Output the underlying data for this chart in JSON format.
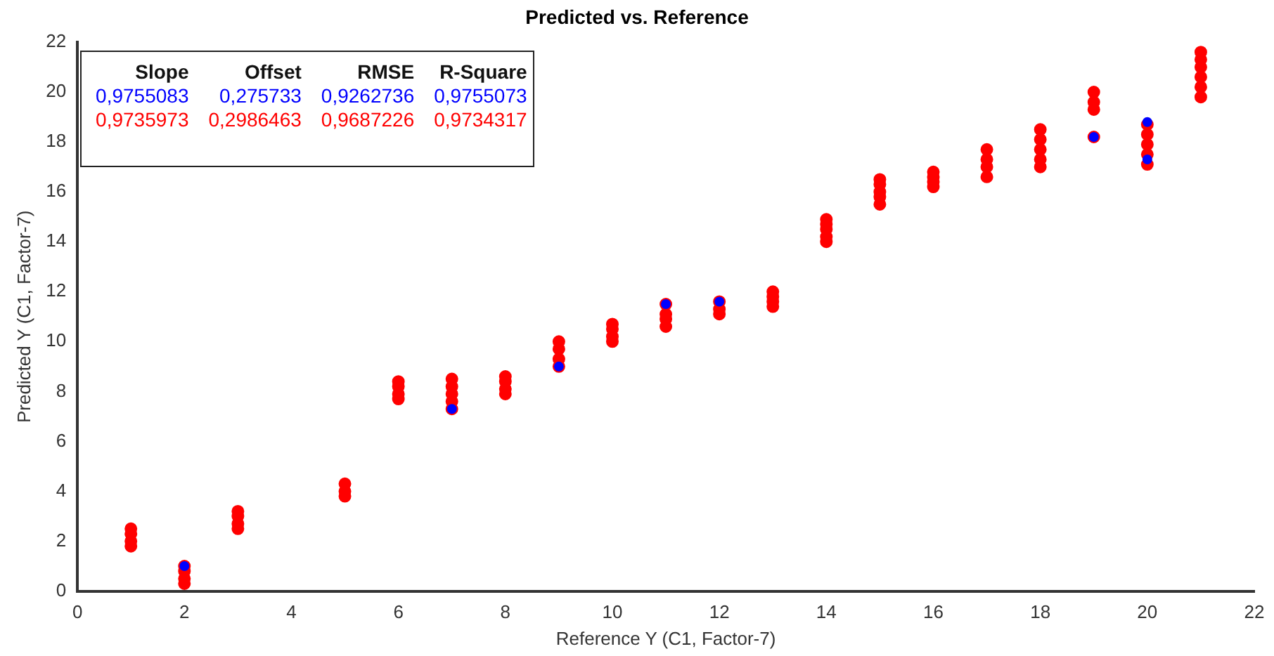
{
  "chart_data": {
    "type": "scatter",
    "title": "Predicted vs. Reference",
    "xlabel": "Reference Y (C1, Factor-7)",
    "ylabel": "Predicted Y (C1, Factor-7)",
    "xlim": [
      0,
      22
    ],
    "xticks": [
      0,
      2,
      4,
      6,
      8,
      10,
      12,
      14,
      16,
      18,
      20,
      22
    ],
    "ylim": [
      0,
      22
    ],
    "yticks": [
      0,
      2,
      4,
      6,
      8,
      10,
      12,
      14,
      16,
      18,
      20,
      22
    ],
    "grid": false,
    "legend": false,
    "marker": "circle",
    "annotations": [
      "Slope",
      "Offset",
      "RMSE",
      "R-Square",
      "0,9755083",
      "0,275733",
      "0,9262736",
      "0,9755073",
      "0,9735973",
      "0,2986463",
      "0,9687226",
      "0,9734317"
    ],
    "series": [
      {
        "color": "#0000ff",
        "x": [
          2,
          7,
          9,
          11,
          12,
          19,
          20,
          20
        ],
        "values": [
          1.0,
          7.3,
          9.0,
          11.5,
          11.6,
          18.2,
          18.8,
          17.3
        ]
      },
      {
        "color": "#ff0000",
        "x": [
          1,
          1,
          1,
          1,
          2,
          2,
          2,
          2,
          3,
          3,
          3,
          3,
          5,
          5,
          5,
          6,
          6,
          6,
          6,
          7,
          7,
          7,
          7,
          7,
          8,
          8,
          8,
          8,
          9,
          9,
          9,
          9,
          10,
          10,
          10,
          10,
          11,
          11,
          11,
          11,
          12,
          12,
          12,
          13,
          13,
          13,
          13,
          14,
          14,
          14,
          14,
          14,
          15,
          15,
          15,
          15,
          15,
          16,
          16,
          16,
          16,
          17,
          17,
          17,
          17,
          18,
          18,
          18,
          18,
          18,
          19,
          19,
          19,
          19,
          20,
          20,
          20,
          20,
          20,
          21,
          21,
          21,
          21,
          21,
          21
        ],
        "values": [
          1.8,
          2.0,
          2.3,
          2.5,
          0.3,
          0.5,
          0.8,
          1.0,
          2.5,
          2.7,
          3.0,
          3.2,
          3.8,
          4.0,
          4.3,
          7.7,
          7.9,
          8.2,
          8.4,
          7.3,
          7.6,
          7.9,
          8.2,
          8.5,
          7.9,
          8.1,
          8.4,
          8.6,
          9.0,
          9.3,
          9.7,
          10.0,
          10.0,
          10.2,
          10.5,
          10.7,
          10.6,
          10.9,
          11.1,
          11.5,
          11.1,
          11.3,
          11.6,
          11.4,
          11.6,
          11.8,
          12.0,
          14.0,
          14.2,
          14.5,
          14.7,
          14.9,
          15.5,
          15.8,
          16.0,
          16.3,
          16.5,
          16.2,
          16.4,
          16.6,
          16.8,
          16.6,
          17.0,
          17.3,
          17.7,
          17.0,
          17.3,
          17.7,
          18.1,
          18.5,
          18.2,
          19.3,
          19.6,
          20.0,
          17.1,
          17.5,
          17.9,
          18.3,
          18.7,
          19.8,
          20.2,
          20.6,
          21.0,
          21.3,
          21.6
        ]
      }
    ]
  }
}
